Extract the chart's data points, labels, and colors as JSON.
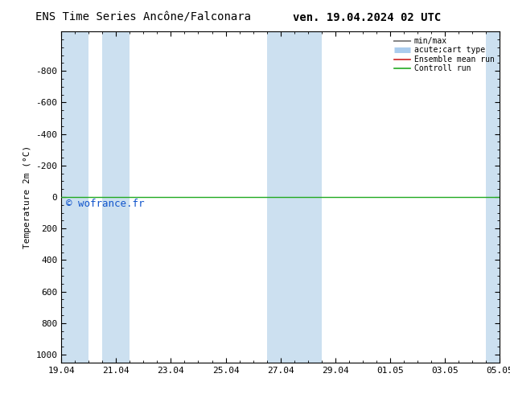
{
  "title_left": "ENS Time Series Ancône/Falconara",
  "title_right": "ven. 19.04.2024 02 UTC",
  "ylabel": "Temperature 2m (°C)",
  "ylim_top": -1050,
  "ylim_bottom": 1050,
  "yticks": [
    -800,
    -600,
    -400,
    -200,
    0,
    200,
    400,
    600,
    800,
    1000
  ],
  "x_tick_labels": [
    "19.04",
    "21.04",
    "23.04",
    "25.04",
    "27.04",
    "29.04",
    "01.05",
    "03.05",
    "05.05"
  ],
  "x_tick_positions": [
    0,
    2,
    4,
    6,
    8,
    10,
    12,
    14,
    16
  ],
  "xlim": [
    0,
    16
  ],
  "shaded_bands": [
    [
      0.0,
      1.0
    ],
    [
      1.5,
      2.5
    ],
    [
      7.5,
      9.5
    ],
    [
      15.5,
      16.0
    ]
  ],
  "shade_color": "#cce0f0",
  "green_line_y": 0,
  "green_line_color": "#22aa22",
  "red_line_color": "#cc2222",
  "watermark": "© wofrance.fr",
  "watermark_color": "#1155cc",
  "legend_labels": [
    "min/max",
    "acute;cart type",
    "Ensemble mean run",
    "Controll run"
  ],
  "legend_line_colors": [
    "#888888",
    "#aaccee",
    "#cc2222",
    "#22aa22"
  ],
  "background_color": "#ffffff",
  "font_color": "#000000",
  "title_fontsize": 10,
  "axis_fontsize": 8
}
